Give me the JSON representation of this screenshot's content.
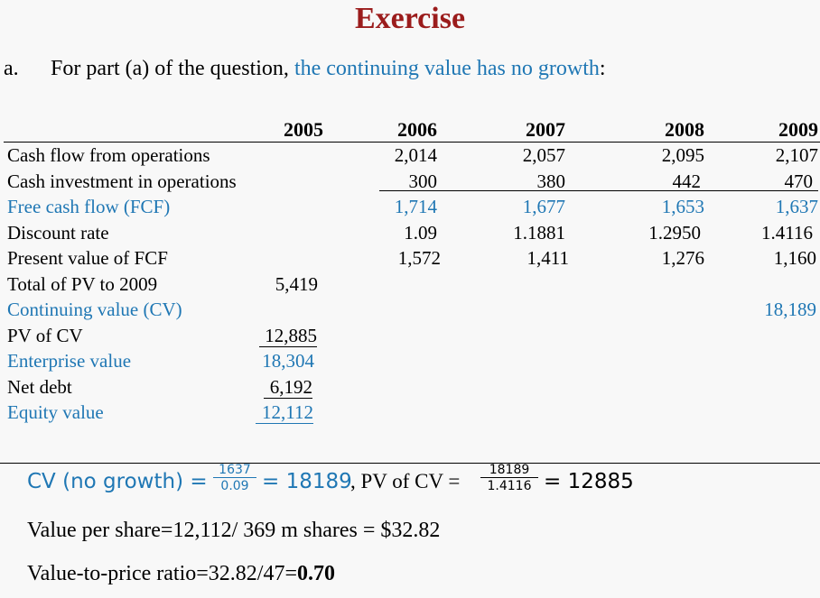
{
  "title": "Exercise",
  "intro": {
    "marker": "a.",
    "text_before": "For part (a) of the question, ",
    "text_highlight": "the continuing value has no growth",
    "text_after": ":"
  },
  "table": {
    "years": [
      "2005",
      "2006",
      "2007",
      "2008",
      "2009"
    ],
    "rows": {
      "cfo": {
        "label": "Cash flow from operations",
        "values": [
          "",
          "2,014",
          "2,057",
          "2,095",
          "2,107"
        ]
      },
      "cio": {
        "label": "Cash investment in operations",
        "values": [
          "",
          "300",
          "380",
          "442",
          "470"
        ]
      },
      "fcf": {
        "label": "Free cash flow (FCF)",
        "values": [
          "",
          "1,714",
          "1,677",
          "1,653",
          "1,637"
        ]
      },
      "dr": {
        "label": "Discount rate",
        "values": [
          "",
          "1.09",
          "1.1881",
          "1.2950",
          "1.4116"
        ]
      },
      "pv": {
        "label": "Present value of FCF",
        "values": [
          "",
          "1,572",
          "1,411",
          "1,276",
          "1,160"
        ]
      },
      "total": {
        "label": "Total of PV to 2009",
        "value_2005": "5,419"
      },
      "cv": {
        "label": "Continuing value (CV)",
        "value_2009": "18,189"
      },
      "pvcv": {
        "label": "PV of CV",
        "value_2005": "12,885"
      },
      "ev": {
        "label": "Enterprise value",
        "value_2005": "18,304"
      },
      "nd": {
        "label": "Net debt",
        "value_2005": "6,192"
      },
      "eq": {
        "label": "Equity value",
        "value_2005": "12,112"
      }
    }
  },
  "formulas": {
    "cv_label": "CV (no growth) =",
    "cv_num": "1637",
    "cv_den": "0.09",
    "cv_result": "= 18189",
    "pvcv_label": ", PV of CV =",
    "pvcv_num": "18189",
    "pvcv_den": "1.4116",
    "pvcv_result": "= 12885",
    "vps": "Value per share=12,112/ 369 m shares = $32.82",
    "vtp_prefix": "Value-to-price ratio=32.82/47=",
    "vtp_bold": "0.70"
  },
  "colors": {
    "title": "#9b1c1c",
    "highlight": "#1f77b4",
    "background": "#f8f8f8"
  }
}
